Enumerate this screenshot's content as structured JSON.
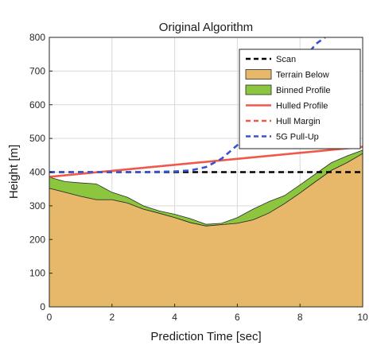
{
  "chart_data": {
    "type": "area",
    "title": "Original Algorithm",
    "xlabel": "Prediction Time [sec]",
    "ylabel": "Height [m]",
    "xlim": [
      0,
      10
    ],
    "ylim": [
      0,
      800
    ],
    "xticks": [
      "0",
      "2",
      "4",
      "6",
      "8",
      "10"
    ],
    "yticks": [
      "0",
      "100",
      "200",
      "300",
      "400",
      "500",
      "600",
      "700",
      "800"
    ],
    "grid": true,
    "legend_position": "top-right",
    "series": [
      {
        "name": "Scan",
        "style": "dashed",
        "color": "#000000",
        "x": [
          0,
          10
        ],
        "y": [
          400,
          400
        ]
      },
      {
        "name": "Terrain Below",
        "style": "filled",
        "color": "#e8b86a",
        "x": [
          0,
          0.5,
          1,
          1.5,
          2,
          2.5,
          3,
          3.5,
          4,
          4.5,
          5,
          5.5,
          6,
          6.5,
          7,
          7.5,
          8,
          8.5,
          9,
          9.5,
          10
        ],
        "y": [
          352,
          340,
          328,
          318,
          318,
          308,
          290,
          278,
          265,
          250,
          240,
          244,
          248,
          258,
          278,
          306,
          338,
          372,
          405,
          428,
          455
        ]
      },
      {
        "name": "Binned Profile",
        "style": "filled",
        "color": "#8cc63f",
        "x": [
          0,
          0.5,
          1,
          1.5,
          2,
          2.5,
          3,
          3.5,
          4,
          4.5,
          5,
          5.5,
          6,
          6.5,
          7,
          7.5,
          8,
          8.5,
          9,
          9.5,
          10
        ],
        "y": [
          385,
          372,
          368,
          365,
          340,
          325,
          300,
          285,
          275,
          262,
          245,
          248,
          265,
          290,
          312,
          330,
          362,
          395,
          428,
          448,
          465
        ]
      },
      {
        "name": "Hulled Profile",
        "style": "solid",
        "color": "#f0584a",
        "x": [
          0,
          10
        ],
        "y": [
          386,
          475
        ]
      },
      {
        "name": "Hull Margin",
        "style": "dashed",
        "color": "#f0584a",
        "x": [
          0,
          10
        ],
        "y": [
          386,
          475
        ]
      },
      {
        "name": "5G Pull-Up",
        "style": "dashed",
        "color": "#3554d1",
        "x": [
          0,
          1,
          2,
          3,
          4,
          4.5,
          5,
          5.5,
          6,
          6.5,
          7,
          7.5,
          8,
          8.5,
          8.8
        ],
        "y": [
          400,
          400,
          400,
          400,
          402,
          405,
          415,
          440,
          480,
          530,
          590,
          655,
          720,
          780,
          800
        ]
      }
    ]
  }
}
